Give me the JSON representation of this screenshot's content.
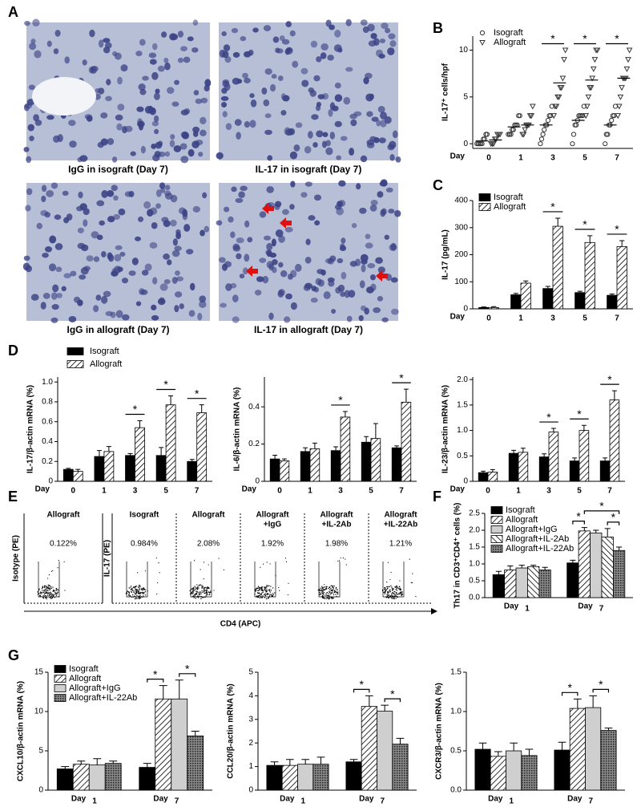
{
  "panel_labels": [
    "A",
    "B",
    "C",
    "D",
    "E",
    "F",
    "G"
  ],
  "micrographs": [
    {
      "caption": "IgG in isograft (Day 7)"
    },
    {
      "caption": "IL-17 in isograft (Day 7)"
    },
    {
      "caption": "IgG in allograft (Day 7)"
    },
    {
      "caption": "IL-17 in allograft (Day 7)"
    }
  ],
  "flow": {
    "y_labels": [
      "Isotype (PE)",
      "IL-17 (PE)"
    ],
    "x_label": "CD4 (APC)",
    "plots": [
      {
        "title": [
          "Allograft"
        ],
        "percent": "0.122%"
      },
      {
        "title": [
          "Isograft"
        ],
        "percent": "0.984%"
      },
      {
        "title": [
          "Allograft"
        ],
        "percent": "2.08%"
      },
      {
        "title": [
          "Allograft",
          "+IgG"
        ],
        "percent": "1.92%"
      },
      {
        "title": [
          "Allograft",
          "+IL-2Ab"
        ],
        "percent": "1.98%"
      },
      {
        "title": [
          "Allograft",
          "+IL-22Ab"
        ],
        "percent": "1.21%"
      }
    ]
  },
  "chart_data": [
    {
      "type": "scatter",
      "ylabel": "IL-17⁺ cells/hpf",
      "xlabel": "Day",
      "categories": [
        "0",
        "1",
        "3",
        "5",
        "7"
      ],
      "ylim": [
        -0.5,
        11.5
      ],
      "yticks": [
        0,
        5,
        10
      ],
      "legend": "upper left",
      "series": [
        {
          "name": "Isograft",
          "marker": "circle",
          "color": "#333333",
          "values": [
            [
              0,
              0,
              0,
              0,
              0,
              0.5,
              0.5,
              1,
              1
            ],
            [
              1,
              1,
              1,
              1.5,
              1.5,
              2,
              2,
              2,
              3,
              3
            ],
            [
              0,
              0.5,
              1,
              1.5,
              2,
              2,
              2.5,
              3,
              3,
              4
            ],
            [
              0,
              1,
              2,
              2,
              2.5,
              3,
              3,
              3,
              3,
              4
            ],
            [
              0,
              1,
              1,
              2,
              2,
              2.5,
              3,
              3,
              4
            ]
          ],
          "means": [
            0.3,
            1.8,
            2,
            2.5,
            2
          ]
        },
        {
          "name": "Allograft",
          "marker": "triangle-down",
          "color": "#333333",
          "values": [
            [
              0,
              0,
              0,
              0.5,
              0.5,
              1,
              1,
              1
            ],
            [
              1,
              1,
              1.5,
              2,
              2,
              2,
              3,
              3,
              4
            ],
            [
              3,
              4,
              4,
              5,
              5,
              6,
              6,
              7,
              9,
              10
            ],
            [
              3,
              4,
              5,
              6,
              6,
              7,
              8,
              9,
              10,
              10
            ],
            [
              3,
              4,
              5,
              6,
              7,
              7,
              7,
              8,
              9,
              10
            ]
          ],
          "means": [
            0.4,
            2,
            6.5,
            6.8,
            7
          ]
        }
      ],
      "annotations": [
        {
          "category": "3",
          "text": "*"
        },
        {
          "category": "5",
          "text": "*"
        },
        {
          "category": "7",
          "text": "*"
        }
      ]
    },
    {
      "type": "bar",
      "ylabel": "IL-17 (pg/mL)",
      "xlabel": "Day",
      "categories": [
        "0",
        "1",
        "3",
        "5",
        "7"
      ],
      "ylim": [
        0,
        400
      ],
      "yticks": [
        0,
        100,
        200,
        300,
        400
      ],
      "legend": "upper left",
      "series": [
        {
          "name": "Isograft",
          "color": "#000000",
          "fill": "solid",
          "values": [
            5,
            52,
            75,
            60,
            50
          ],
          "errors": [
            2,
            5,
            8,
            5,
            5
          ]
        },
        {
          "name": "Allograft",
          "color": "#000000",
          "fill": "hatch",
          "values": [
            5,
            95,
            305,
            245,
            230
          ],
          "errors": [
            3,
            8,
            30,
            25,
            22
          ]
        }
      ],
      "annotations": [
        {
          "category": "3",
          "text": "*"
        },
        {
          "category": "5",
          "text": "*"
        },
        {
          "category": "7",
          "text": "*"
        }
      ]
    },
    {
      "type": "bar",
      "ylabel": "IL-17/β-actin mRNA (%)",
      "xlabel": "Day",
      "categories": [
        "0",
        "1",
        "3",
        "5",
        "7"
      ],
      "ylim": [
        0,
        1.05
      ],
      "yticks": [
        0,
        0.2,
        0.4,
        0.6,
        0.8,
        {
          "value": 1,
          "label": "1.0"
        }
      ],
      "legend": "top",
      "series": [
        {
          "name": "Isograft",
          "color": "#000000",
          "fill": "solid",
          "values": [
            0.12,
            0.25,
            0.26,
            0.26,
            0.2
          ],
          "errors": [
            0.01,
            0.06,
            0.02,
            0.08,
            0.02
          ]
        },
        {
          "name": "Allograft",
          "color": "#000000",
          "fill": "hatch",
          "values": [
            0.1,
            0.3,
            0.54,
            0.77,
            0.69
          ],
          "errors": [
            0.02,
            0.05,
            0.07,
            0.09,
            0.08
          ]
        }
      ],
      "annotations": [
        {
          "category": "3",
          "text": "*"
        },
        {
          "category": "5",
          "text": "*"
        },
        {
          "category": "7",
          "text": "*"
        }
      ]
    },
    {
      "type": "bar",
      "ylabel": "IL-6/β-actin mRNA (%)",
      "xlabel": "Day",
      "categories": [
        "0",
        "1",
        "3",
        "5",
        "7"
      ],
      "ylim": [
        0,
        0.56
      ],
      "yticks": [
        0,
        0.2,
        0.4
      ],
      "series": [
        {
          "name": "Isograft",
          "color": "#000000",
          "fill": "solid",
          "values": [
            0.12,
            0.16,
            0.165,
            0.21,
            0.18
          ],
          "errors": [
            0.02,
            0.02,
            0.02,
            0.03,
            0.01
          ]
        },
        {
          "name": "Allograft",
          "color": "#000000",
          "fill": "hatch",
          "values": [
            0.11,
            0.175,
            0.345,
            0.23,
            0.425
          ],
          "errors": [
            0.01,
            0.03,
            0.03,
            0.08,
            0.07
          ]
        }
      ],
      "annotations": [
        {
          "category": "3",
          "text": "*"
        },
        {
          "category": "7",
          "text": "*"
        }
      ]
    },
    {
      "type": "bar",
      "ylabel": "IL-23/β-actin mRNA (%)",
      "xlabel": "Day",
      "categories": [
        "0",
        "1",
        "3",
        "5",
        "7"
      ],
      "ylim": [
        0,
        2.05
      ],
      "yticks": [
        0,
        0.5,
        {
          "value": 1,
          "label": "1.0"
        },
        1.5,
        {
          "value": 2,
          "label": "2.0"
        }
      ],
      "series": [
        {
          "name": "Isograft",
          "color": "#000000",
          "fill": "solid",
          "values": [
            0.17,
            0.55,
            0.48,
            0.4,
            0.4
          ],
          "errors": [
            0.03,
            0.06,
            0.06,
            0.06,
            0.06
          ]
        },
        {
          "name": "Allograft",
          "color": "#000000",
          "fill": "hatch",
          "values": [
            0.18,
            0.57,
            0.97,
            1.0,
            1.6
          ],
          "errors": [
            0.05,
            0.08,
            0.07,
            0.1,
            0.18
          ]
        }
      ],
      "annotations": [
        {
          "category": "3",
          "text": "*"
        },
        {
          "category": "5",
          "text": "*"
        },
        {
          "category": "7",
          "text": "*"
        }
      ]
    },
    {
      "type": "bar",
      "ylabel": "Th17 in CD3⁺CD4⁺ cells (%)",
      "xlabel": "Day",
      "categories": [
        "1",
        "7"
      ],
      "ylim": [
        0,
        2.5
      ],
      "yticks": [
        {
          "value": 0,
          "label": "0.0"
        },
        0.5,
        {
          "value": 1,
          "label": "1.0"
        },
        1.5,
        {
          "value": 2,
          "label": "2.0"
        },
        2.5
      ],
      "legend": "upper left",
      "series": [
        {
          "name": "Isograft",
          "color": "#000000",
          "fill": "solid",
          "values": [
            0.68,
            1.03
          ],
          "errors": [
            0.1,
            0.08
          ]
        },
        {
          "name": "Allograft",
          "color": "#000000",
          "fill": "hatch",
          "values": [
            0.82,
            1.98
          ],
          "errors": [
            0.12,
            0.1
          ]
        },
        {
          "name": "Allograft+IgG",
          "color": "#cfcfcf",
          "fill": "solid",
          "values": [
            0.88,
            1.92
          ],
          "errors": [
            0.08,
            0.08
          ]
        },
        {
          "name": "Allograft+IL-2Ab",
          "color": "#000000",
          "fill": "hatch-reverse",
          "values": [
            0.92,
            1.8
          ],
          "errors": [
            0.04,
            0.25
          ]
        },
        {
          "name": "Allograft+IL-22Ab",
          "color": "#000000",
          "fill": "dots",
          "values": [
            0.82,
            1.4
          ],
          "errors": [
            0.08,
            0.1
          ]
        }
      ],
      "annotations": [
        {
          "category": "7",
          "series": [
            0,
            1
          ],
          "text": "*"
        },
        {
          "category": "7",
          "series": [
            3,
            4
          ],
          "text": "*"
        },
        {
          "category": "7",
          "series": [
            1,
            4
          ],
          "text": "*"
        }
      ]
    },
    {
      "type": "bar",
      "ylabel": "CXCL10/β-actin mRNA (%)",
      "xlabel": "Day",
      "categories": [
        "1",
        "7"
      ],
      "ylim": [
        0,
        15
      ],
      "yticks": [
        0,
        5,
        10,
        15
      ],
      "legend": "upper left",
      "series": [
        {
          "name": "Isograft",
          "color": "#000000",
          "fill": "solid",
          "values": [
            2.7,
            2.9
          ],
          "errors": [
            0.3,
            0.5
          ]
        },
        {
          "name": "Allograft",
          "color": "#000000",
          "fill": "hatch",
          "values": [
            3.3,
            11.6
          ],
          "errors": [
            0.4,
            1.7
          ]
        },
        {
          "name": "Allograft+IgG",
          "color": "#cfcfcf",
          "fill": "solid",
          "values": [
            3.2,
            11.6
          ],
          "errors": [
            0.8,
            2.4
          ]
        },
        {
          "name": "Allograft+IL-22Ab",
          "color": "#000000",
          "fill": "dots",
          "values": [
            3.4,
            6.9
          ],
          "errors": [
            0.3,
            0.6
          ]
        }
      ],
      "annotations": [
        {
          "category": "7",
          "series": [
            0,
            1
          ],
          "text": "*"
        },
        {
          "category": "7",
          "series": [
            2,
            3
          ],
          "text": "*"
        }
      ]
    },
    {
      "type": "bar",
      "ylabel": "CCL20/β-actin mRNA (%)",
      "xlabel": "Day",
      "categories": [
        "1",
        "7"
      ],
      "ylim": [
        0,
        5
      ],
      "yticks": [
        0,
        1,
        2,
        3,
        4,
        5
      ],
      "series": [
        {
          "name": "Isograft",
          "color": "#000000",
          "fill": "solid",
          "values": [
            1.05,
            1.2
          ],
          "errors": [
            0.15,
            0.1
          ]
        },
        {
          "name": "Allograft",
          "color": "#000000",
          "fill": "hatch",
          "values": [
            1.05,
            3.55
          ],
          "errors": [
            0.25,
            0.45
          ]
        },
        {
          "name": "Allograft+IgG",
          "color": "#cfcfcf",
          "fill": "solid",
          "values": [
            1.1,
            3.35
          ],
          "errors": [
            0.2,
            0.25
          ]
        },
        {
          "name": "Allograft+IL-22Ab",
          "color": "#000000",
          "fill": "dots",
          "values": [
            1.1,
            1.95
          ],
          "errors": [
            0.3,
            0.25
          ]
        }
      ],
      "annotations": [
        {
          "category": "7",
          "series": [
            0,
            1
          ],
          "text": "*"
        },
        {
          "category": "7",
          "series": [
            2,
            3
          ],
          "text": "*"
        }
      ]
    },
    {
      "type": "bar",
      "ylabel": "CXCR3/β-actin mRNA (%)",
      "xlabel": "Day",
      "categories": [
        "1",
        "7"
      ],
      "ylim": [
        0,
        1.5
      ],
      "yticks": [
        {
          "value": 0,
          "label": "0.0"
        },
        0.5,
        {
          "value": 1,
          "label": "1.0"
        },
        1.5
      ],
      "series": [
        {
          "name": "Isograft",
          "color": "#000000",
          "fill": "solid",
          "values": [
            0.52,
            0.51
          ],
          "errors": [
            0.08,
            0.1
          ]
        },
        {
          "name": "Allograft",
          "color": "#000000",
          "fill": "hatch",
          "values": [
            0.43,
            1.04
          ],
          "errors": [
            0.06,
            0.12
          ]
        },
        {
          "name": "Allograft+IgG",
          "color": "#cfcfcf",
          "fill": "solid",
          "values": [
            0.5,
            1.05
          ],
          "errors": [
            0.1,
            0.15
          ]
        },
        {
          "name": "Allograft+IL-22Ab",
          "color": "#000000",
          "fill": "dots",
          "values": [
            0.44,
            0.76
          ],
          "errors": [
            0.08,
            0.03
          ]
        }
      ],
      "annotations": [
        {
          "category": "7",
          "series": [
            0,
            1
          ],
          "text": "*"
        },
        {
          "category": "7",
          "series": [
            2,
            3
          ],
          "text": "*"
        }
      ]
    }
  ]
}
